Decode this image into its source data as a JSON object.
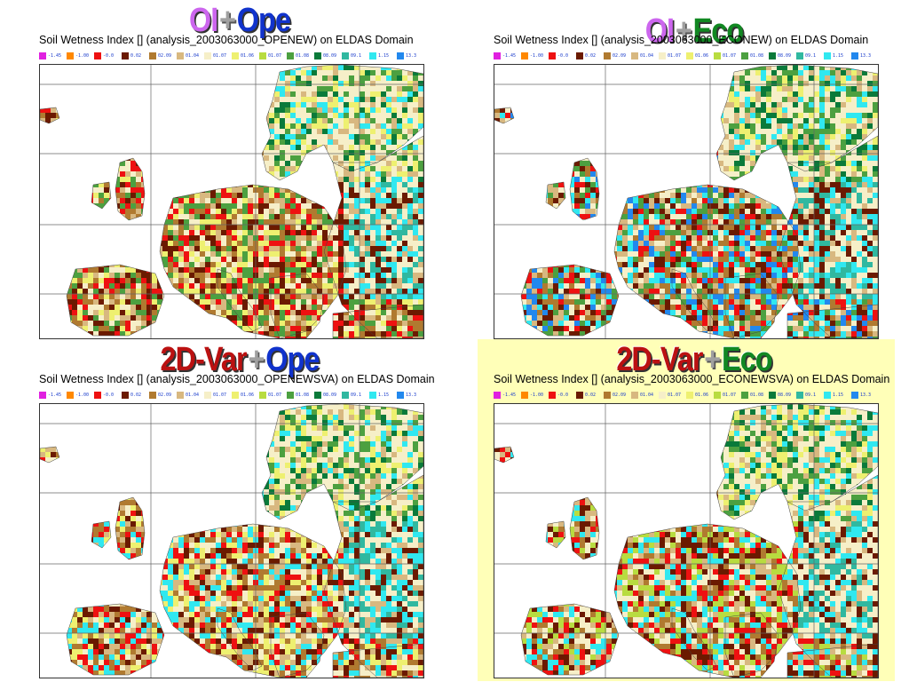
{
  "legend": [
    {
      "label": "-1.45",
      "color": "#e020e0"
    },
    {
      "label": "-1.00",
      "color": "#ff8800"
    },
    {
      "label": "-0.0",
      "color": "#ee1111"
    },
    {
      "label": "0.02",
      "color": "#6b1a00"
    },
    {
      "label": "02.09",
      "color": "#b07a30"
    },
    {
      "label": "01.04",
      "color": "#d8b880"
    },
    {
      "label": "01.07",
      "color": "#f6efc8"
    },
    {
      "label": "01.06",
      "color": "#eef070"
    },
    {
      "label": "01.07",
      "color": "#b8dc40"
    },
    {
      "label": "01.08",
      "color": "#4ca040"
    },
    {
      "label": "08.09",
      "color": "#0a7a3a"
    },
    {
      "label": "09.1",
      "color": "#30b8a0"
    },
    {
      "label": "1.15",
      "color": "#30e8f0"
    },
    {
      "label": "13.3",
      "color": "#2288ee"
    }
  ],
  "panels": [
    {
      "heading_left": "OI",
      "heading_left_color": "#cc66ee",
      "heading_plus": "+",
      "heading_right": "Ope",
      "heading_right_color": "#1133cc",
      "title": "Soil Wetness Index [] (analysis_2003063000_OPENEW) on ELDAS Domain",
      "highlight": false
    },
    {
      "heading_left": "OI",
      "heading_left_color": "#cc66ee",
      "heading_plus": "+",
      "heading_right": "Eco",
      "heading_right_color": "#118822",
      "title": "Soil Wetness Index [] (analysis_2003063000_ECONEW) on ELDAS Domain",
      "highlight": false
    },
    {
      "heading_left": "2D-Var",
      "heading_left_color": "#bb1111",
      "heading_plus": "+",
      "heading_right": "Ope",
      "heading_right_color": "#1133cc",
      "title": "Soil Wetness Index [] (analysis_2003063000_OPENEWSVA) on ELDAS Domain",
      "highlight": false
    },
    {
      "heading_left": "2D-Var",
      "heading_left_color": "#bb1111",
      "heading_plus": "+",
      "heading_right": "Eco",
      "heading_right_color": "#118822",
      "title": "Soil Wetness Index [] (analysis_2003063000_ECONEWSVA) on ELDAS Domain",
      "highlight": true
    }
  ]
}
